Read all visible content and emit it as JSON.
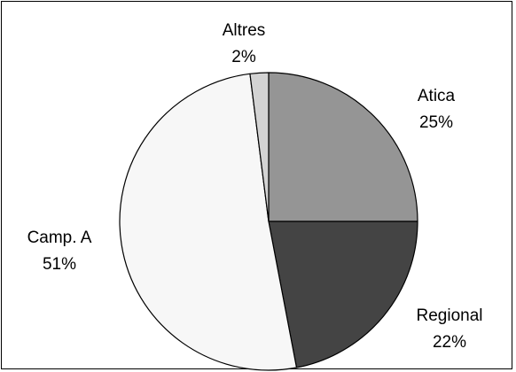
{
  "chart_data": {
    "type": "pie",
    "title": "",
    "slices": [
      {
        "label": "Atica",
        "value": 25,
        "value_label": "25%",
        "color": "#959595"
      },
      {
        "label": "Regional",
        "value": 22,
        "value_label": "22%",
        "color": "#444444"
      },
      {
        "label": "Camp. A",
        "value": 51,
        "value_label": "51%",
        "color": "#f7f7f7"
      },
      {
        "label": "Altres",
        "value": 2,
        "value_label": "2%",
        "color": "#d3d3d3"
      }
    ],
    "start_angle_deg": 0,
    "direction": "clockwise",
    "legend": "none",
    "label_placement": "outside"
  }
}
